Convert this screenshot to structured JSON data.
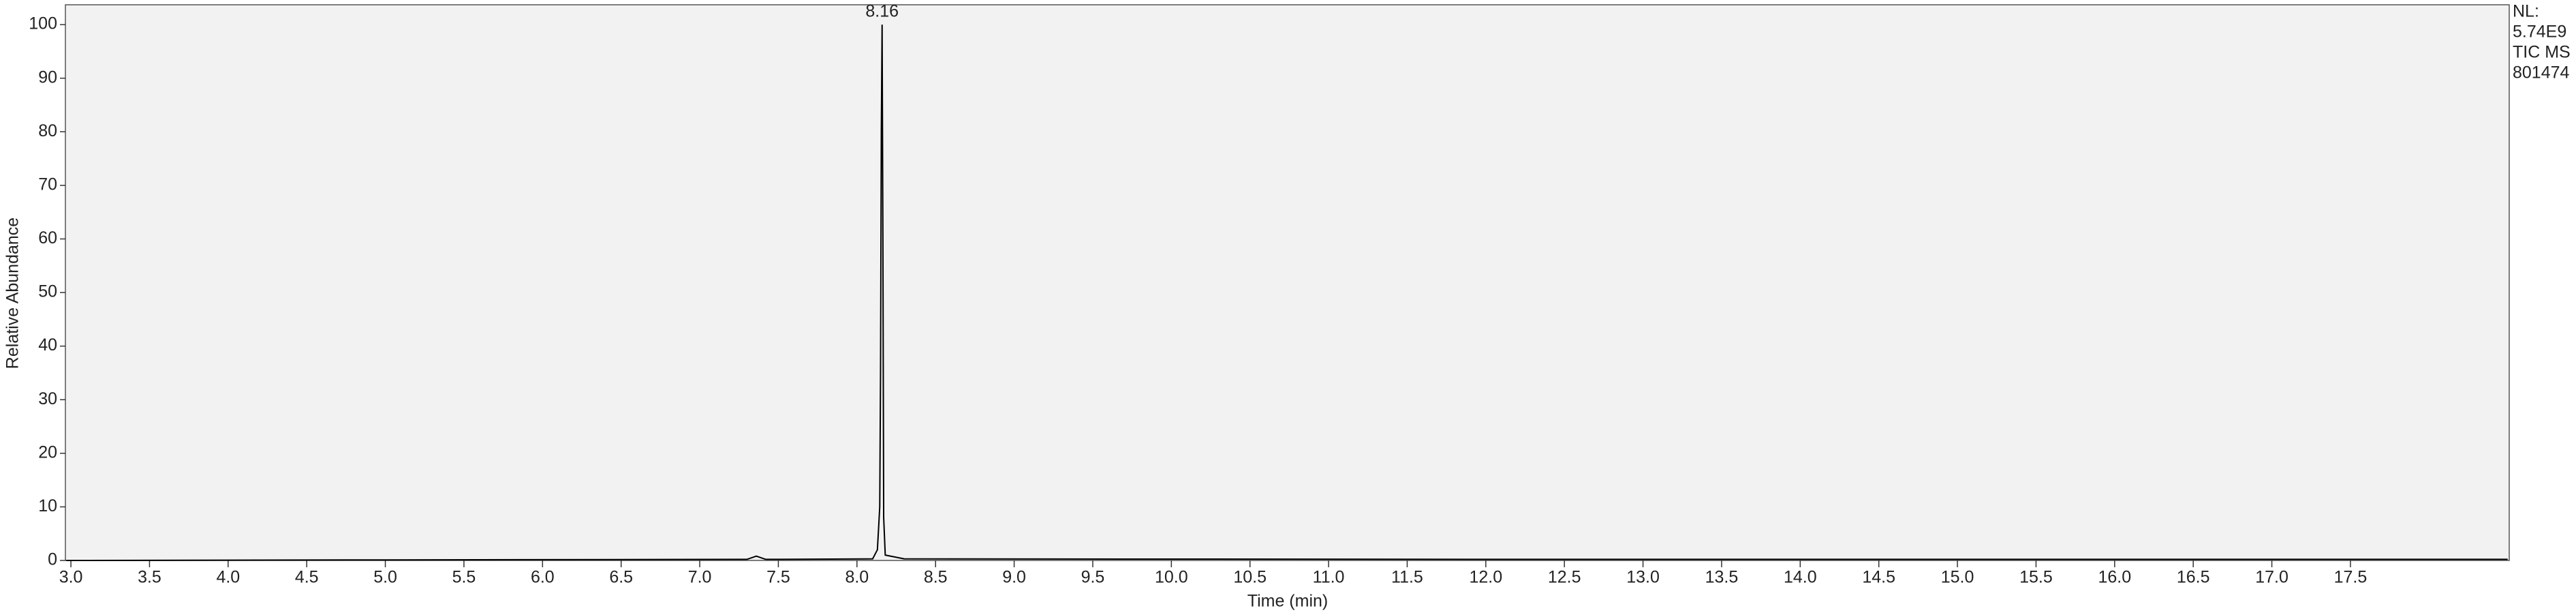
{
  "chart_data": {
    "type": "line",
    "xlabel": "Time (min)",
    "ylabel": "Relative Abundance",
    "x": [
      2.97,
      5.0,
      7.3,
      7.36,
      7.42,
      8.1,
      8.13,
      8.145,
      8.15,
      8.155,
      8.16,
      8.165,
      8.17,
      8.18,
      8.3,
      12.0,
      18.5
    ],
    "series": [
      {
        "name": "TIC MS",
        "color": "#000000",
        "values": [
          0,
          0.1,
          0.2,
          0.8,
          0.2,
          0.3,
          2,
          10,
          35,
          80,
          100,
          60,
          8,
          1,
          0.3,
          0.2,
          0.2
        ]
      }
    ],
    "annotations": [
      {
        "text": "8.16",
        "x": 8.16,
        "y": 100
      }
    ],
    "info": [
      "NL:",
      "5.74E9",
      "TIC MS",
      "801474"
    ],
    "xlim": [
      2.965,
      18.51
    ],
    "ylim": [
      0,
      103.7
    ],
    "xticks": [
      {
        "value": 3,
        "label": "3.0"
      },
      3.5,
      {
        "value": 4,
        "label": "4.0"
      },
      4.5,
      {
        "value": 5,
        "label": "5.0"
      },
      5.5,
      {
        "value": 6,
        "label": "6.0"
      },
      6.5,
      {
        "value": 7,
        "label": "7.0"
      },
      7.5,
      {
        "value": 8,
        "label": "8.0"
      },
      8.5,
      {
        "value": 9,
        "label": "9.0"
      },
      9.5,
      {
        "value": 10,
        "label": "10.0"
      },
      10.5,
      {
        "value": 11,
        "label": "11.0"
      },
      11.5,
      {
        "value": 12,
        "label": "12.0"
      },
      12.5,
      {
        "value": 13,
        "label": "13.0"
      },
      13.5,
      {
        "value": 14,
        "label": "14.0"
      },
      14.5,
      {
        "value": 15,
        "label": "15.0"
      },
      15.5,
      {
        "value": 16,
        "label": "16.0"
      },
      16.5,
      {
        "value": 17,
        "label": "17.0"
      },
      17.5
    ],
    "yticks": [
      0,
      10,
      20,
      30,
      40,
      50,
      60,
      70,
      80,
      90,
      100
    ],
    "background": "#f2f2f2"
  }
}
